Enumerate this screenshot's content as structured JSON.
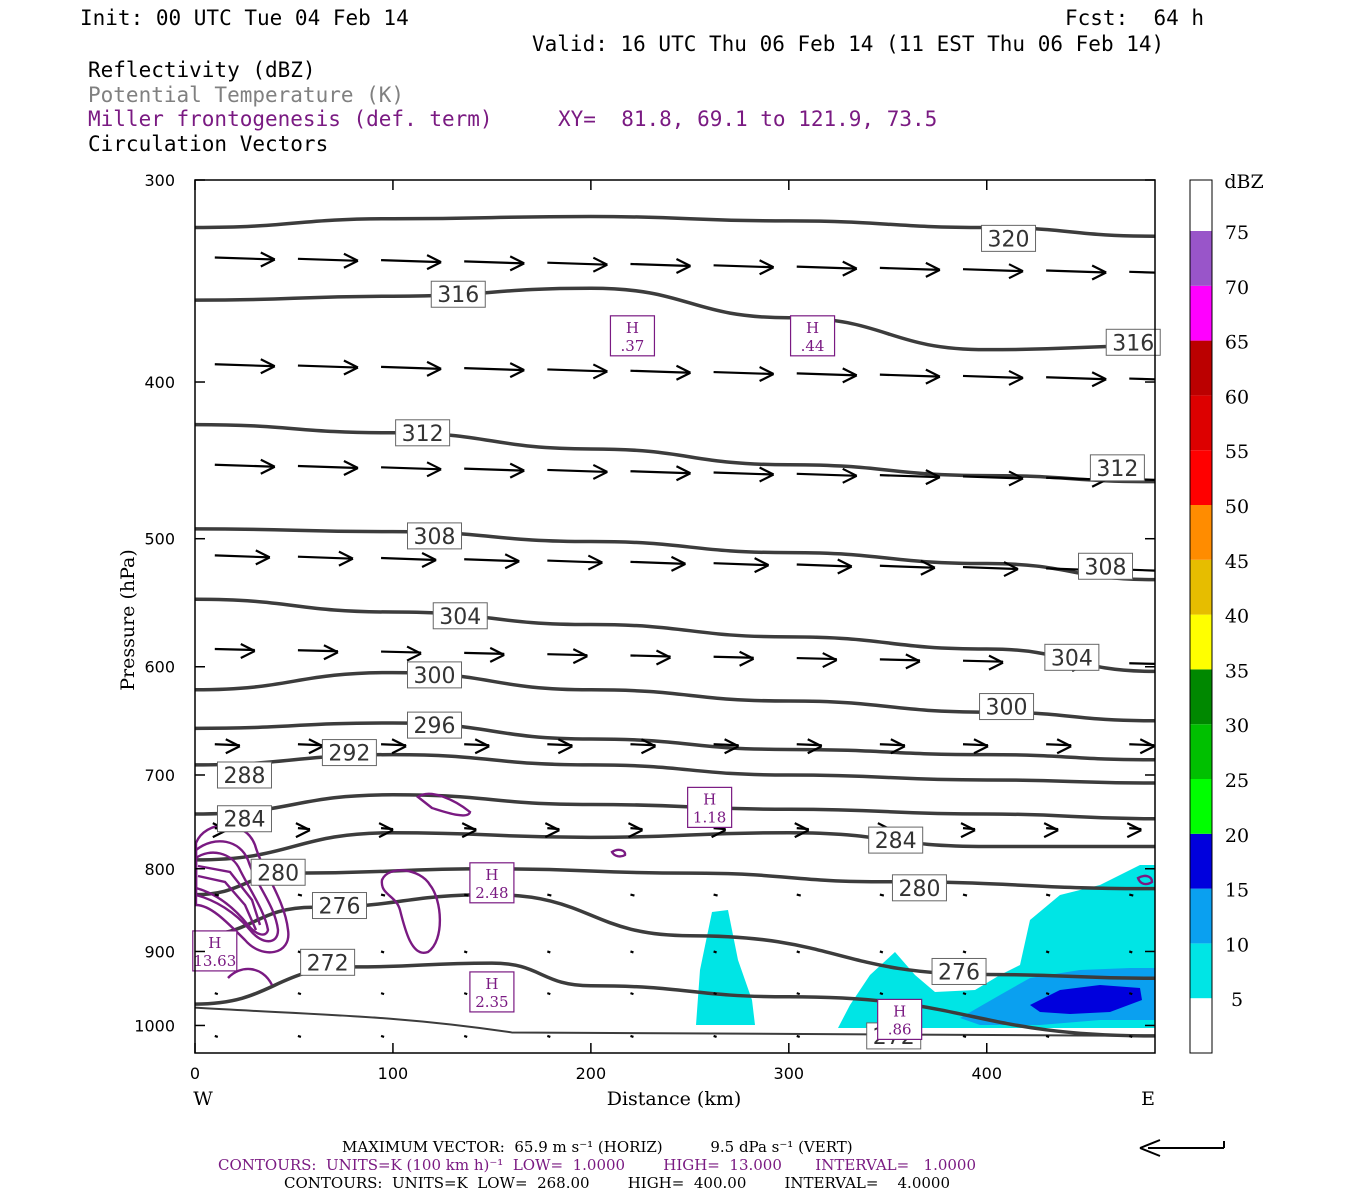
{
  "header": {
    "init": "Init: 00 UTC Tue 04 Feb 14",
    "fcst": "Fcst:  64 h",
    "valid": "Valid: 16 UTC Thu 06 Feb 14 (11 EST Thu 06 Feb 14)",
    "field1": "Reflectivity (dBZ)",
    "field2": "Potential Temperature (K)",
    "field3": "Miller frontogenesis (def. term)",
    "xy": "XY=  81.8, 69.1 to 121.9, 73.5",
    "field4": "Circulation Vectors"
  },
  "colors": {
    "theta": "#3c3c3c",
    "frontogenesis": "#7a1a82",
    "potential_temperature_label": "#808080",
    "axis": "#000000"
  },
  "chart_data": {
    "type": "cross-section",
    "xlabel": "Distance (km)",
    "ylabel": "Pressure (hPa)",
    "xlim": [
      0,
      485
    ],
    "ylim": [
      1040,
      300
    ],
    "y_scale": "log",
    "x_ticks": [
      0,
      100,
      200,
      300,
      400
    ],
    "y_ticks": [
      300,
      400,
      500,
      600,
      700,
      800,
      900,
      1000
    ],
    "x_end_labels": [
      "W",
      "E"
    ],
    "theta_contours": [
      {
        "label": "320",
        "label_at": [
          411,
          326
        ],
        "points": [
          [
            0,
            321
          ],
          [
            100,
            317
          ],
          [
            200,
            316
          ],
          [
            300,
            318
          ],
          [
            400,
            321
          ],
          [
            485,
            325
          ]
        ]
      },
      {
        "label": "316",
        "label_at": [
          133,
          353
        ],
        "points": [
          [
            0,
            356
          ],
          [
            100,
            354
          ],
          [
            200,
            350
          ],
          [
            300,
            365
          ],
          [
            400,
            382
          ],
          [
            485,
            380
          ]
        ]
      },
      {
        "label": "316",
        "label_at": [
          474,
          378
        ],
        "points": [
          [
            0,
            356
          ],
          [
            485,
            380
          ]
        ]
      },
      {
        "label": "312",
        "label_at": [
          115,
          430
        ],
        "points": [
          [
            0,
            425
          ],
          [
            100,
            430
          ],
          [
            200,
            440
          ],
          [
            300,
            450
          ],
          [
            400,
            457
          ],
          [
            485,
            461
          ]
        ]
      },
      {
        "label": "312",
        "label_at": [
          466,
          452
        ],
        "points": [
          [
            0,
            425
          ],
          [
            485,
            461
          ]
        ]
      },
      {
        "label": "308",
        "label_at": [
          121,
          498
        ],
        "points": [
          [
            0,
            493
          ],
          [
            100,
            495
          ],
          [
            200,
            502
          ],
          [
            300,
            510
          ],
          [
            400,
            518
          ],
          [
            485,
            530
          ]
        ]
      },
      {
        "label": "308",
        "label_at": [
          460,
          520
        ],
        "points": [
          [
            0,
            493
          ],
          [
            485,
            530
          ]
        ]
      },
      {
        "label": "304",
        "label_at": [
          134,
          558
        ],
        "points": [
          [
            0,
            545
          ],
          [
            100,
            555
          ],
          [
            200,
            565
          ],
          [
            300,
            575
          ],
          [
            400,
            585
          ],
          [
            485,
            604
          ]
        ]
      },
      {
        "label": "304",
        "label_at": [
          443,
          592
        ],
        "points": [
          [
            0,
            545
          ],
          [
            485,
            604
          ]
        ]
      },
      {
        "label": "300",
        "label_at": [
          121,
          607
        ],
        "points": [
          [
            0,
            620
          ],
          [
            100,
            605
          ],
          [
            200,
            620
          ],
          [
            300,
            630
          ],
          [
            400,
            640
          ],
          [
            485,
            648
          ]
        ]
      },
      {
        "label": "300",
        "label_at": [
          410,
          635
        ],
        "points": [
          [
            0,
            620
          ],
          [
            485,
            648
          ]
        ]
      },
      {
        "label": "296",
        "label_at": [
          121,
          652
        ],
        "points": [
          [
            0,
            655
          ],
          [
            100,
            650
          ],
          [
            200,
            665
          ],
          [
            300,
            675
          ],
          [
            400,
            680
          ],
          [
            485,
            685
          ]
        ]
      },
      {
        "label": "292",
        "label_at": [
          78,
          678
        ],
        "points": [
          [
            0,
            690
          ],
          [
            100,
            680
          ],
          [
            200,
            690
          ],
          [
            300,
            700
          ],
          [
            400,
            705
          ],
          [
            485,
            708
          ]
        ]
      },
      {
        "label": "288",
        "label_at": [
          25,
          700
        ],
        "points": [
          [
            0,
            740
          ],
          [
            100,
            720
          ],
          [
            200,
            730
          ],
          [
            300,
            735
          ],
          [
            400,
            740
          ],
          [
            485,
            745
          ]
        ]
      },
      {
        "label": "284",
        "label_at": [
          25,
          745
        ],
        "points": [
          [
            0,
            790
          ],
          [
            100,
            760
          ],
          [
            200,
            765
          ],
          [
            300,
            760
          ],
          [
            400,
            775
          ],
          [
            485,
            775
          ]
        ]
      },
      {
        "label": "284",
        "label_at": [
          354,
          768
        ],
        "points": [
          [
            0,
            790
          ],
          [
            485,
            775
          ]
        ]
      },
      {
        "label": "280",
        "label_at": [
          42,
          804
        ],
        "points": [
          [
            0,
            830
          ],
          [
            50,
            805
          ],
          [
            150,
            800
          ],
          [
            250,
            805
          ],
          [
            350,
            815
          ],
          [
            485,
            823
          ]
        ]
      },
      {
        "label": "280",
        "label_at": [
          366,
          822
        ],
        "points": [
          [
            0,
            830
          ],
          [
            485,
            823
          ]
        ]
      },
      {
        "label": "276",
        "label_at": [
          73,
          843
        ],
        "points": [
          [
            0,
            880
          ],
          [
            60,
            845
          ],
          [
            150,
            830
          ],
          [
            250,
            880
          ],
          [
            400,
            930
          ],
          [
            485,
            935
          ]
        ]
      },
      {
        "label": "276",
        "label_at": [
          386,
          926
        ],
        "points": [
          [
            0,
            880
          ],
          [
            485,
            935
          ]
        ]
      },
      {
        "label": "272",
        "label_at": [
          67,
          914
        ],
        "points": [
          [
            0,
            970
          ],
          [
            80,
            920
          ],
          [
            150,
            915
          ],
          [
            200,
            945
          ],
          [
            300,
            960
          ],
          [
            485,
            1015
          ]
        ]
      },
      {
        "label": "272",
        "label_at": [
          353,
          1015
        ],
        "points": [
          [
            0,
            970
          ],
          [
            485,
            1015
          ]
        ]
      }
    ],
    "frontogenesis_maxima": [
      {
        "value": ".37",
        "x": 221,
        "p": 374
      },
      {
        "value": ".44",
        "x": 312,
        "p": 374
      },
      {
        "value": "1.18",
        "x": 260,
        "p": 732
      },
      {
        "value": "2.48",
        "x": 150,
        "p": 815
      },
      {
        "value": "13.63",
        "x": 10,
        "p": 898
      },
      {
        "value": "2.35",
        "x": 150,
        "p": 952
      },
      {
        "value": ".86",
        "x": 356,
        "p": 990
      }
    ],
    "reflectivity_scale": {
      "unit": "dBZ",
      "labels": [
        "5",
        "10",
        "15",
        "20",
        "25",
        "30",
        "35",
        "40",
        "45",
        "50",
        "55",
        "60",
        "65",
        "70",
        "75"
      ],
      "colors": [
        "#ffffff",
        "#00e5e5",
        "#0aa0f0",
        "#0000dd",
        "#00ff00",
        "#00c000",
        "#008800",
        "#ffff00",
        "#e6bd00",
        "#ff8c00",
        "#ff0000",
        "#dd0000",
        "#bb0000",
        "#ff00ff",
        "#9955c9"
      ]
    },
    "max_vector": {
      "horiz": "65.9",
      "vert": "9.5",
      "text_horiz": "MAXIMUM VECTOR:  65.9 m s",
      "text_horiz_unit": "(HORIZ)",
      "text_vert": "9.5 dPa s",
      "text_vert_unit": "(VERT)"
    }
  },
  "footer": {
    "line1": "MAXIMUM VECTOR:  65.9 m s⁻¹ (HORIZ)          9.5 dPa s⁻¹ (VERT)",
    "line2": "CONTOURS:  UNITS=K (100 km h)⁻¹  LOW=  1.0000        HIGH=  13.000       INTERVAL=   1.0000",
    "line3": "CONTOURS:  UNITS=K  LOW=  268.00        HIGH=  400.00        INTERVAL=    4.0000"
  }
}
